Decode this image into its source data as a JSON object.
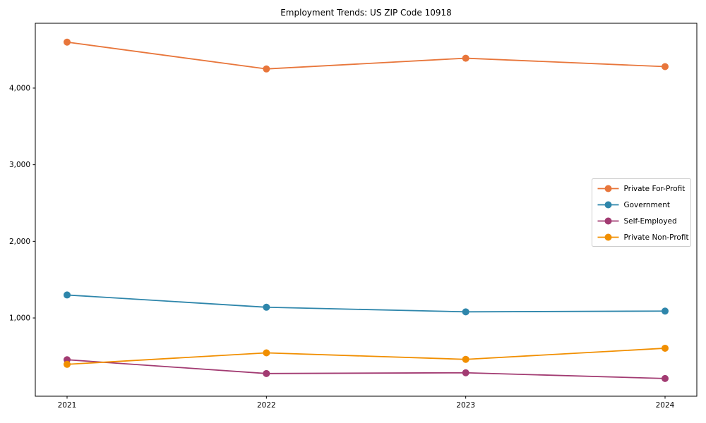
{
  "chart_data": {
    "type": "line",
    "title": "Employment Trends: US ZIP Code 10918",
    "x": [
      2021,
      2022,
      2023,
      2024
    ],
    "xtick_labels": [
      "2021",
      "2022",
      "2023",
      "2024"
    ],
    "yticks": [
      1000,
      2000,
      3000,
      4000
    ],
    "ytick_labels": [
      "1,000",
      "2,000",
      "3,000",
      "4,000"
    ],
    "ylim": [
      -21,
      4846
    ],
    "grid": false,
    "marker": "o",
    "legend_position": "center-right",
    "series": [
      {
        "name": "Private For-Profit",
        "color": "#e8763b",
        "values": [
          4600,
          4250,
          4390,
          4280
        ]
      },
      {
        "name": "Government",
        "color": "#2e86ab",
        "values": [
          1300,
          1140,
          1080,
          1090
        ]
      },
      {
        "name": "Self-Employed",
        "color": "#a23b72",
        "values": [
          455,
          275,
          285,
          210
        ]
      },
      {
        "name": "Private Non-Profit",
        "color": "#f18f01",
        "values": [
          395,
          545,
          460,
          605
        ]
      }
    ]
  }
}
